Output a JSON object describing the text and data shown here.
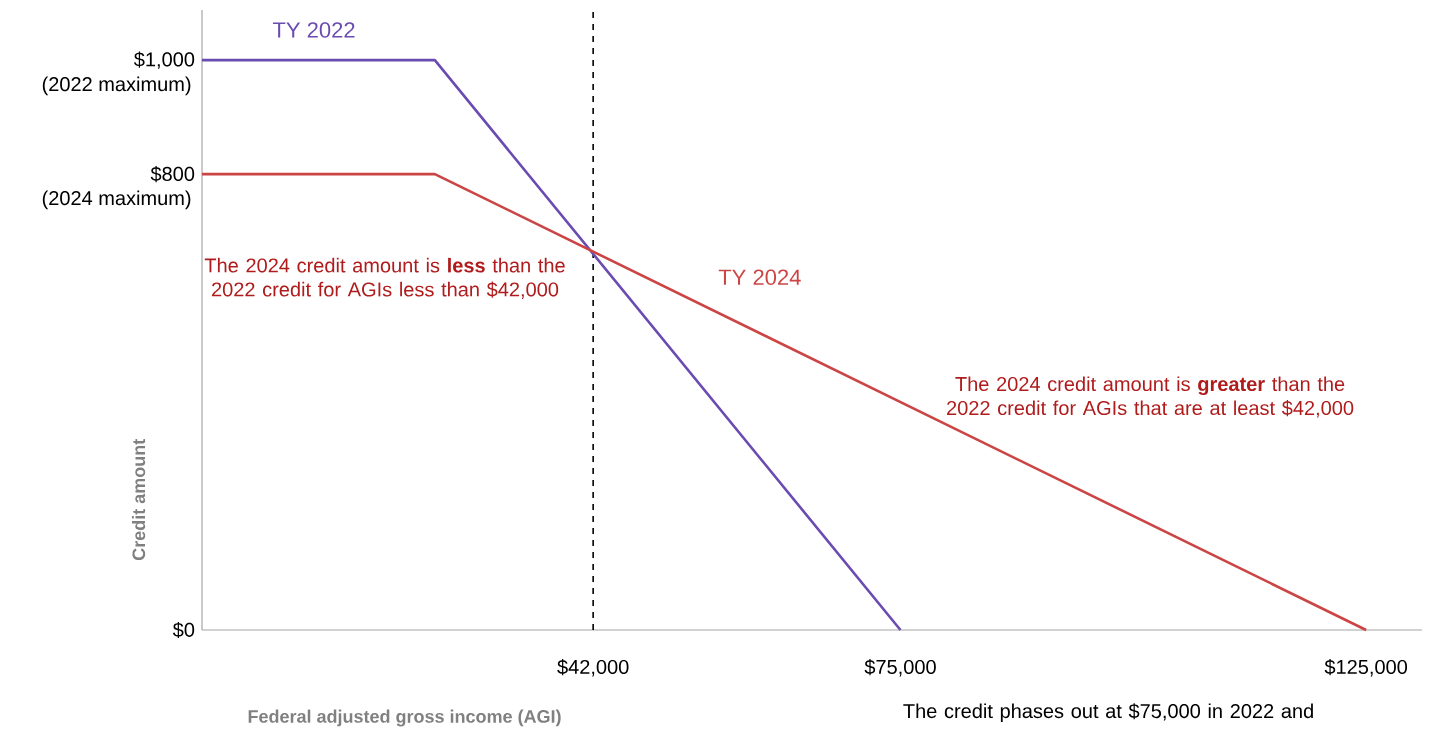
{
  "chart_data": {
    "type": "line",
    "xlabel": "Federal adjusted gross income (AGI)",
    "ylabel": "Credit amount",
    "xlim": [
      0,
      131000
    ],
    "ylim": [
      0,
      1088
    ],
    "xticks": [
      {
        "value": 42000,
        "label": "$42,000"
      },
      {
        "value": 75000,
        "label": "$75,000"
      },
      {
        "value": 125000,
        "label": "$125,000"
      }
    ],
    "yticks": [
      {
        "value": 0,
        "label": "$0"
      },
      {
        "value": 800,
        "label": "$800"
      },
      {
        "value": 1000,
        "label": "$1,000"
      }
    ],
    "series": [
      {
        "name": "TY 2022",
        "color": "#6a4bb2",
        "x": [
          0,
          25000,
          75000
        ],
        "values": [
          1000,
          1000,
          0
        ]
      },
      {
        "name": "TY 2024",
        "color": "#cc4545",
        "x": [
          0,
          25000,
          125000
        ],
        "values": [
          800,
          800,
          0
        ]
      }
    ],
    "ref_lines": [
      {
        "axis": "x",
        "value": 42000,
        "color": "#000000",
        "line_style": "dashed"
      }
    ],
    "annotations": [
      "The 2024 credit amount is **less** than the 2022 credit for AGIs less than $42,000",
      "The 2024 credit amount is **greater** than the 2022 credit for AGIs that are at least $42,000",
      "The credit phases out at $75,000 in 2022 and",
      {
        "text": "(2022 maximum)",
        "x": 0,
        "y": 1000
      },
      {
        "text": "(2024 maximum)",
        "x": 0,
        "y": 800
      }
    ],
    "grid": false,
    "legend": false,
    "marker": "none",
    "line_style": "solid"
  }
}
